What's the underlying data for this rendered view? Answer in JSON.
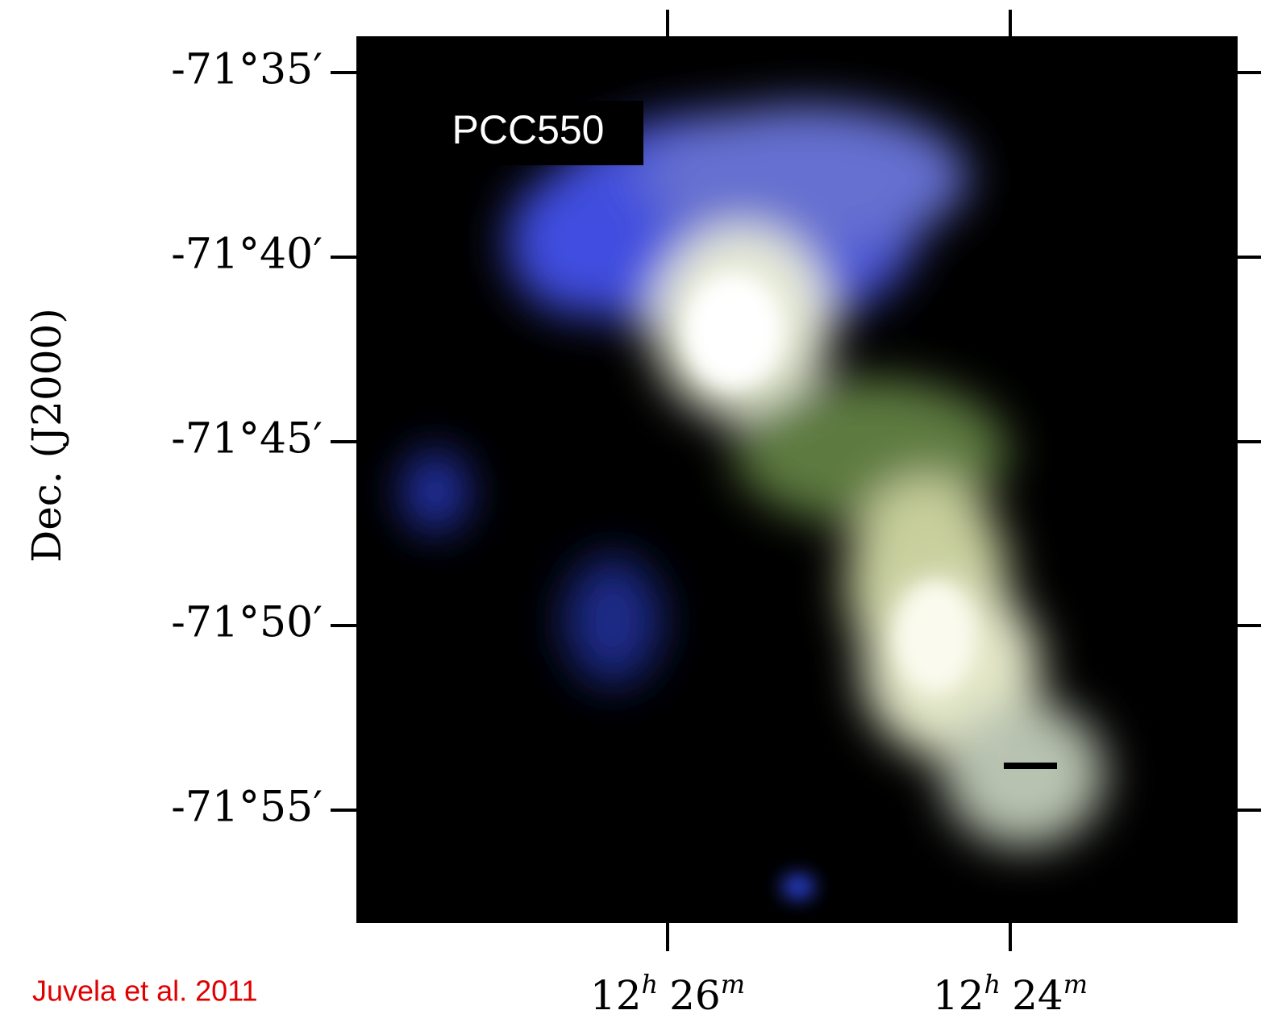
{
  "image": {
    "label": "PCC550"
  },
  "y_axis": {
    "title": "Dec. (J2000)",
    "ticks": [
      "-71°35′",
      "-71°40′",
      "-71°45′",
      "-71°50′",
      "-71°55′"
    ]
  },
  "x_axis": {
    "ticks": [
      [
        "12",
        "h",
        "26",
        "m"
      ],
      [
        "12",
        "h",
        "24",
        "m"
      ]
    ]
  },
  "credit": "Juvela et al. 2011"
}
